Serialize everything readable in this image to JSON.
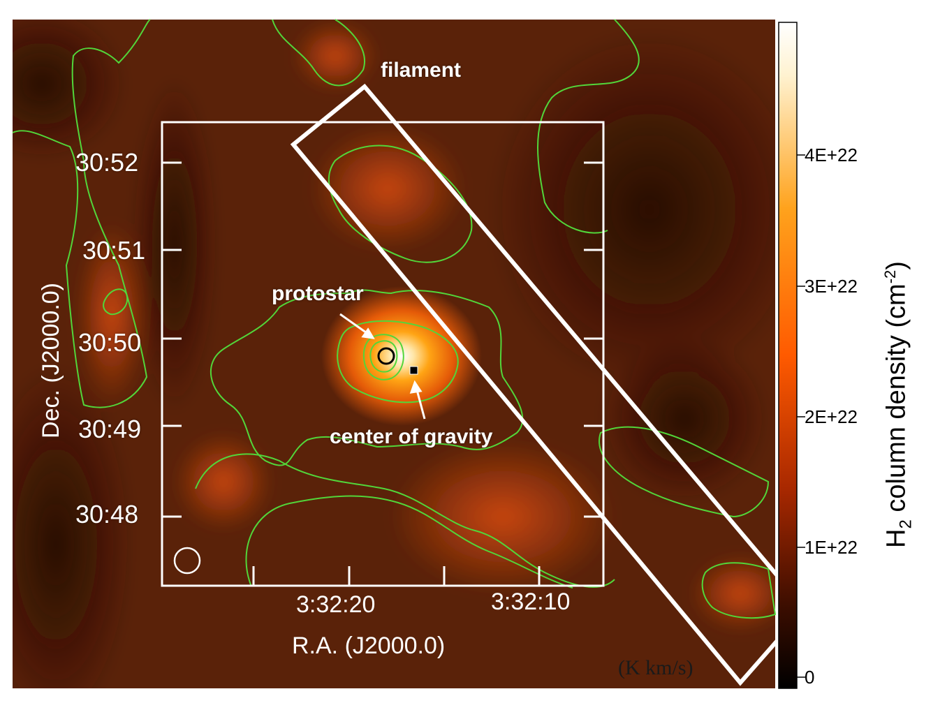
{
  "map": {
    "annotations": {
      "filament": "filament",
      "protostar": "protostar",
      "center_of_gravity": "center of gravity"
    },
    "axes": {
      "dec_label": "Dec. (J2000.0)",
      "ra_label": "R.A. (J2000.0)",
      "dec_ticks": [
        "30:52",
        "30:51",
        "30:50",
        "30:49",
        "30:48"
      ],
      "ra_ticks": [
        "3:32:20",
        "3:32:10"
      ]
    },
    "inset_unit_label": "(K km/s)",
    "contour_color": "#52d63a",
    "overlay_color": "#ffffff"
  },
  "colorbar": {
    "title": "H",
    "title_sub": "2",
    "title_rest": " column density (cm",
    "title_sup": "-2",
    "title_end": ")",
    "ticks": [
      "4E+22",
      "3E+22",
      "2E+22",
      "1E+22",
      "0"
    ],
    "colors": [
      "#000000",
      "#3a0d00",
      "#a82800",
      "#ff5a00",
      "#ffa21c",
      "#fff2d0",
      "#ffffff"
    ]
  }
}
